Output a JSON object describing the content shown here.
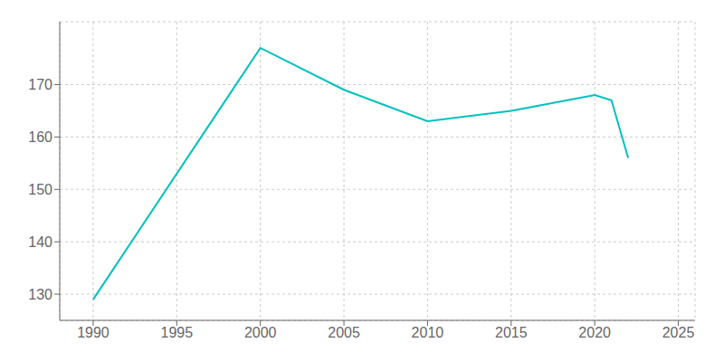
{
  "chart_data": {
    "type": "line",
    "x": [
      1990,
      2000,
      2005,
      2010,
      2015,
      2020,
      2021,
      2022
    ],
    "values": [
      129,
      177,
      169,
      163,
      165,
      168,
      167,
      156
    ],
    "color": "#00c0c0",
    "xlim": [
      1988,
      2026
    ],
    "ylim": [
      125,
      182
    ],
    "xticks": [
      1990,
      1995,
      2000,
      2005,
      2010,
      2015,
      2020,
      2025
    ],
    "yticks": [
      130,
      140,
      150,
      160,
      170
    ],
    "grid": true
  }
}
